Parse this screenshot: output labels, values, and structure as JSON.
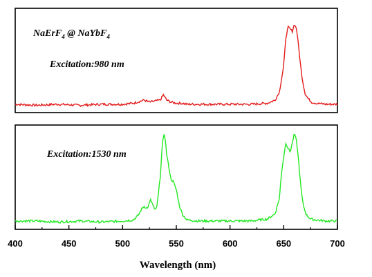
{
  "chart_data": {
    "type": "line",
    "xlabel": "Wavelength (nm)",
    "ylabel": "",
    "xlim": [
      400,
      700
    ],
    "x_ticks": [
      400,
      450,
      500,
      550,
      600,
      650,
      700
    ],
    "panels": [
      {
        "sample_label": {
          "base": "NaErF",
          "sub1": "4",
          "mid": " @ NaYbF",
          "sub2": "4"
        },
        "annotation": "Excitation:980 nm",
        "color": "#e31b1b",
        "ylim": [
          0,
          1
        ],
        "series": [
          {
            "x": [
              400,
              420,
              440,
              460,
              480,
              500,
              510,
              520,
              525,
              530,
              535,
              538,
              541,
              545,
              550,
              555,
              560,
              580,
              600,
              620,
              635,
              642,
              646,
              650,
              652,
              654,
              656,
              658,
              660,
              662,
              664,
              666,
              668,
              670,
              673,
              676,
              680,
              690,
              700
            ],
            "y": [
              0.08,
              0.07,
              0.08,
              0.07,
              0.08,
              0.08,
              0.09,
              0.12,
              0.1,
              0.11,
              0.12,
              0.17,
              0.12,
              0.1,
              0.09,
              0.09,
              0.08,
              0.08,
              0.08,
              0.08,
              0.09,
              0.12,
              0.2,
              0.45,
              0.72,
              0.82,
              0.8,
              0.78,
              0.85,
              0.8,
              0.62,
              0.42,
              0.28,
              0.18,
              0.13,
              0.1,
              0.09,
              0.08,
              0.08
            ]
          }
        ]
      },
      {
        "sample_label": null,
        "annotation": "Excitation:1530 nm",
        "color": "#22e822",
        "ylim": [
          0,
          1
        ],
        "series": [
          {
            "x": [
              400,
              420,
              440,
              460,
              480,
              500,
              510,
              515,
              518,
              520,
              523,
              526,
              528,
              530,
              532,
              535,
              537,
              539,
              541,
              543,
              545,
              547,
              550,
              553,
              556,
              560,
              570,
              580,
              600,
              620,
              635,
              642,
              646,
              648,
              650,
              652,
              654,
              656,
              658,
              660,
              662,
              664,
              666,
              668,
              671,
              675,
              680,
              690,
              700
            ],
            "y": [
              0.08,
              0.08,
              0.07,
              0.08,
              0.07,
              0.08,
              0.09,
              0.14,
              0.2,
              0.22,
              0.2,
              0.28,
              0.24,
              0.18,
              0.22,
              0.5,
              0.82,
              0.93,
              0.72,
              0.6,
              0.48,
              0.46,
              0.38,
              0.22,
              0.14,
              0.09,
              0.08,
              0.08,
              0.08,
              0.08,
              0.1,
              0.15,
              0.3,
              0.55,
              0.7,
              0.83,
              0.78,
              0.74,
              0.83,
              0.92,
              0.84,
              0.64,
              0.4,
              0.24,
              0.14,
              0.1,
              0.09,
              0.08,
              0.08
            ]
          }
        ]
      }
    ]
  }
}
